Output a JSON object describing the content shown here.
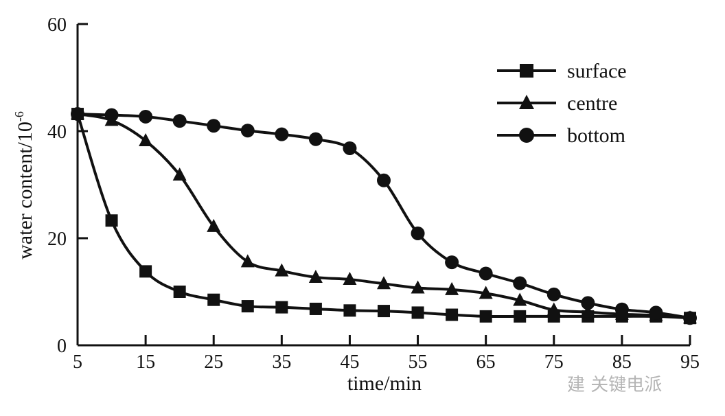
{
  "chart_data": {
    "type": "line",
    "title": "",
    "xlabel": "time/min",
    "ylabel": "water content/10",
    "ylabel_sup": "-6",
    "xlim": [
      5,
      95
    ],
    "ylim": [
      0,
      60
    ],
    "xticks": [
      5,
      15,
      25,
      35,
      45,
      55,
      65,
      75,
      85,
      95
    ],
    "yticks": [
      0,
      20,
      40,
      60
    ],
    "grid": false,
    "legend_position": "top-right",
    "x": [
      5,
      10,
      15,
      20,
      25,
      30,
      35,
      40,
      45,
      50,
      55,
      60,
      65,
      70,
      75,
      80,
      85,
      90,
      95
    ],
    "series": [
      {
        "name": "surface",
        "marker": "square",
        "values": [
          43.2,
          23.3,
          13.8,
          10.0,
          8.5,
          7.3,
          7.1,
          6.8,
          6.5,
          6.4,
          6.1,
          5.7,
          5.4,
          5.4,
          5.4,
          5.4,
          5.4,
          5.4,
          5.1
        ]
      },
      {
        "name": "centre",
        "marker": "triangle",
        "values": [
          43.2,
          42.0,
          38.2,
          31.8,
          22.2,
          15.6,
          13.9,
          12.7,
          12.3,
          11.5,
          10.7,
          10.4,
          9.7,
          8.4,
          6.6,
          6.2,
          5.8,
          5.6,
          5.1
        ]
      },
      {
        "name": "bottom",
        "marker": "circle",
        "values": [
          43.2,
          43.0,
          42.7,
          41.9,
          41.0,
          40.1,
          39.4,
          38.5,
          36.8,
          30.8,
          20.9,
          15.5,
          13.4,
          11.6,
          9.5,
          7.9,
          6.7,
          6.1,
          5.1
        ]
      }
    ]
  },
  "watermark": "建 关键电派",
  "colors": {
    "line": "#111111",
    "background": "#ffffff"
  }
}
